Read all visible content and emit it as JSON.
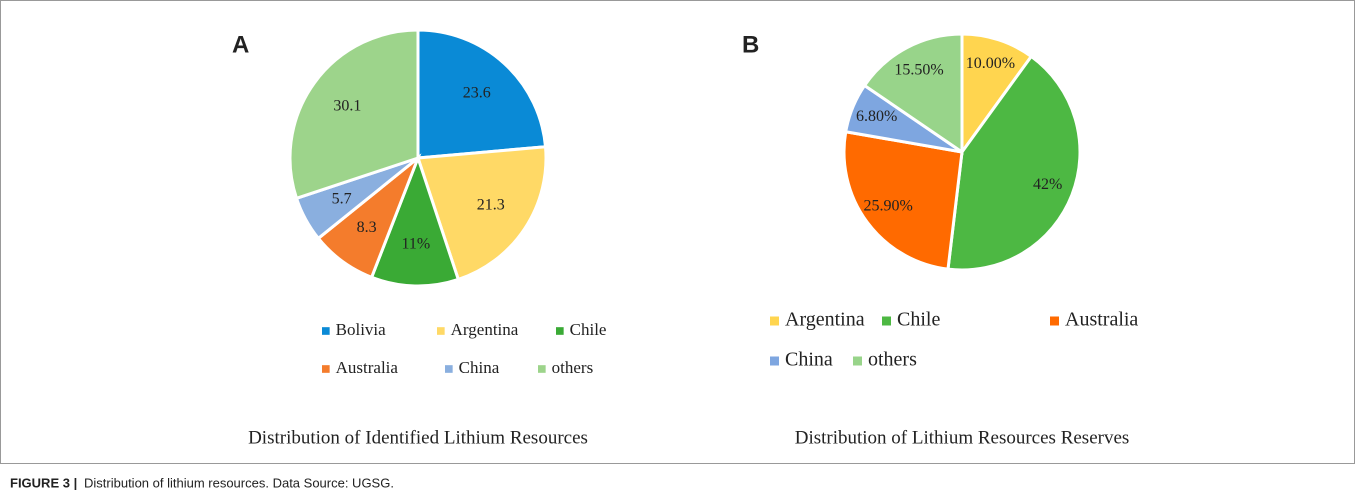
{
  "figure": {
    "label": "FIGURE 3 |",
    "caption": "Distribution of lithium resources. Data Source: UGSG."
  },
  "chart_data": [
    {
      "type": "pie",
      "panel": "A",
      "title": "Distribution of Identified Lithium Resources",
      "categories": [
        "Bolivia",
        "Argentina",
        "Chile",
        "Australia",
        "China",
        "others"
      ],
      "values": [
        23.6,
        21.3,
        11,
        8.3,
        5.7,
        30.1
      ],
      "value_labels": [
        "23.6",
        "21.3",
        "11%",
        "8.3",
        "5.7",
        "30.1"
      ],
      "colors": [
        "#0a8ad6",
        "#ffd966",
        "#3aaa35",
        "#f47c2c",
        "#8aafdf",
        "#9dd48b"
      ]
    },
    {
      "type": "pie",
      "panel": "B",
      "title": "Distribution of Lithium Resources Reserves",
      "categories": [
        "Argentina",
        "Chile",
        "Australia",
        "China",
        "others"
      ],
      "values": [
        10,
        42,
        25.9,
        6.8,
        15.5
      ],
      "value_labels": [
        "10.00%",
        "42%",
        "25.90%",
        "6.80%",
        "15.50%"
      ],
      "colors": [
        "#ffd54f",
        "#4db843",
        "#ff6a00",
        "#7ea6e0",
        "#98d48a"
      ]
    }
  ]
}
